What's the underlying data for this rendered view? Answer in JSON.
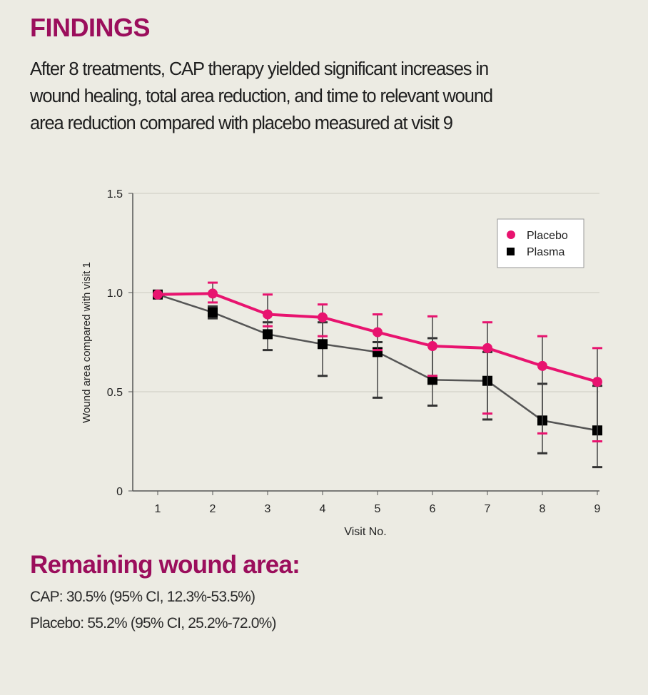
{
  "header": {
    "title": "FINDINGS",
    "summary": "After 8 treatments, CAP therapy yielded significant increases in\nwound healing, total area reduction, and time to relevant wound\narea reduction compared with placebo measured at visit 9"
  },
  "chart_data": {
    "type": "line",
    "title": "",
    "xlabel": "Visit No.",
    "ylabel": "Wound area compared with visit 1",
    "x": [
      1,
      2,
      3,
      4,
      5,
      6,
      7,
      8,
      9
    ],
    "xlim": [
      1,
      9
    ],
    "ylim": [
      0,
      1.5
    ],
    "yticks": [
      "0",
      "0.5",
      "1.0",
      "1.5"
    ],
    "xticks": [
      "1",
      "2",
      "3",
      "4",
      "5",
      "6",
      "7",
      "8",
      "9"
    ],
    "grid": "horizontal",
    "legend_position": "top-right",
    "series": [
      {
        "name": "Placebo",
        "color": "#e8136f",
        "marker": "circle",
        "values": [
          0.99,
          0.995,
          0.89,
          0.875,
          0.8,
          0.73,
          0.72,
          0.63,
          0.55
        ],
        "upper": [
          null,
          1.05,
          0.99,
          0.94,
          0.89,
          0.88,
          0.85,
          0.78,
          0.72
        ],
        "lower": [
          null,
          0.95,
          0.83,
          0.78,
          0.71,
          0.58,
          0.39,
          0.29,
          0.25
        ]
      },
      {
        "name": "Plasma",
        "color": "#000000",
        "marker": "square",
        "values": [
          0.99,
          0.9,
          0.79,
          0.74,
          0.7,
          0.56,
          0.555,
          0.355,
          0.305
        ],
        "upper": [
          null,
          0.93,
          0.85,
          0.85,
          0.75,
          0.77,
          0.7,
          0.54,
          0.53
        ],
        "lower": [
          null,
          0.87,
          0.71,
          0.58,
          0.47,
          0.43,
          0.36,
          0.19,
          0.12
        ]
      }
    ]
  },
  "results": {
    "title": "Remaining wound area:",
    "cap": "CAP: 30.5% (95% CI, 12.3%-53.5%)",
    "placebo": "Placebo: 55.2% (95% CI, 25.2%-72.0%)"
  }
}
